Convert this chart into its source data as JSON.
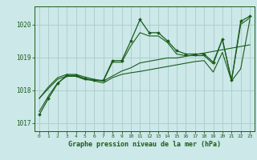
{
  "xlabel": "Graphe pression niveau de la mer (hPa)",
  "bg_color": "#cce8e8",
  "grid_color": "#aacccc",
  "line_color": "#1a5c1a",
  "ylim": [
    1016.75,
    1020.55
  ],
  "xlim": [
    -0.5,
    23.5
  ],
  "yticks": [
    1017,
    1018,
    1019,
    1020
  ],
  "xticks": [
    0,
    1,
    2,
    3,
    4,
    5,
    6,
    7,
    8,
    9,
    10,
    11,
    12,
    13,
    14,
    15,
    16,
    17,
    18,
    19,
    20,
    21,
    22,
    23
  ],
  "series_main": [
    1017.25,
    1017.75,
    1018.2,
    1018.45,
    1018.45,
    1018.35,
    1018.3,
    1018.3,
    1018.9,
    1018.9,
    1019.5,
    1020.15,
    1019.75,
    1019.75,
    1019.5,
    1019.2,
    1019.1,
    1019.1,
    1019.1,
    1018.85,
    1019.55,
    1018.3,
    1020.1,
    1020.25
  ],
  "series_t1": [
    1017.75,
    1018.1,
    1018.38,
    1018.48,
    1018.48,
    1018.4,
    1018.33,
    1018.28,
    1018.43,
    1018.58,
    1018.68,
    1018.83,
    1018.88,
    1018.93,
    1018.98,
    1018.98,
    1019.03,
    1019.08,
    1019.13,
    1019.18,
    1019.23,
    1019.28,
    1019.33,
    1019.38
  ],
  "series_t2": [
    1017.75,
    1018.05,
    1018.33,
    1018.43,
    1018.43,
    1018.35,
    1018.28,
    1018.22,
    1018.38,
    1018.48,
    1018.53,
    1018.57,
    1018.62,
    1018.67,
    1018.72,
    1018.77,
    1018.82,
    1018.87,
    1018.9,
    1018.55,
    1019.15,
    1018.28,
    1018.65,
    1020.15
  ],
  "series_t3": [
    1017.35,
    1017.82,
    1018.22,
    1018.42,
    1018.42,
    1018.32,
    1018.3,
    1018.28,
    1018.85,
    1018.85,
    1019.35,
    1019.75,
    1019.65,
    1019.65,
    1019.45,
    1019.1,
    1019.05,
    1019.05,
    1019.05,
    1018.8,
    1019.55,
    1018.28,
    1020.0,
    1020.2
  ]
}
